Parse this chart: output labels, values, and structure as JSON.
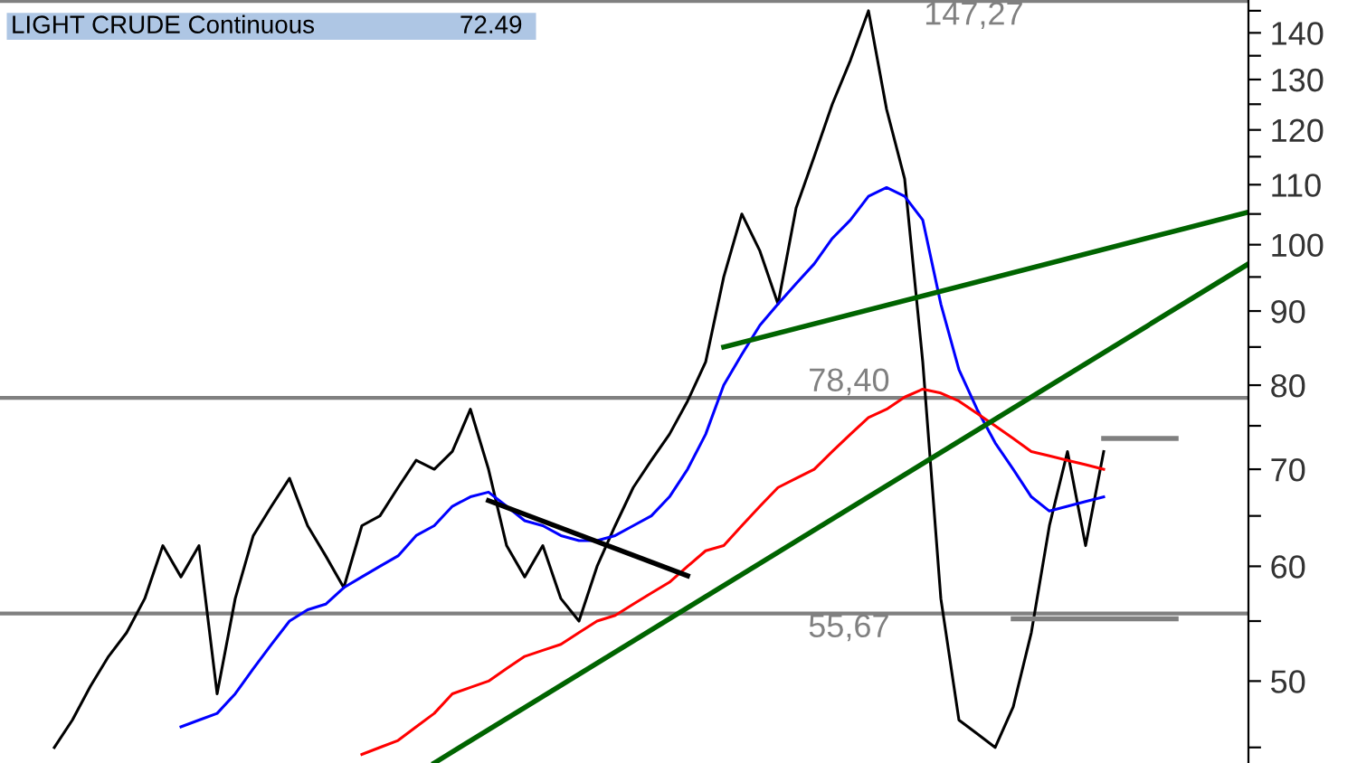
{
  "chart_data": {
    "type": "line",
    "title": "LIGHT CRUDE Continuous",
    "annotations": [
      "72.49"
    ],
    "categories": [
      null,
      null,
      null,
      null,
      null,
      null,
      null,
      null,
      null,
      null,
      null,
      null,
      null,
      null,
      null,
      null,
      null,
      null,
      null,
      null,
      null,
      null,
      null,
      null,
      null,
      null,
      null,
      null,
      null,
      null,
      null,
      null,
      null,
      null,
      null,
      null,
      null,
      null,
      null,
      null,
      null,
      null,
      null,
      null,
      null,
      null,
      null,
      null,
      null,
      null,
      null,
      null,
      null,
      null,
      null,
      null,
      null,
      null,
      null,
      null,
      null,
      null,
      null,
      null,
      null,
      null,
      null,
      null,
      null,
      null
    ],
    "series": [
      {
        "color": "#000000",
        "values": [
          null,
          null,
          null,
          45,
          47,
          49.6,
          52,
          54,
          57,
          62,
          59,
          62,
          49,
          57,
          63,
          66,
          69,
          64,
          61,
          58,
          64,
          65,
          68,
          71,
          70,
          72,
          77,
          70,
          62,
          59,
          62,
          57,
          55,
          60,
          64,
          68,
          71,
          74,
          78,
          83,
          95,
          105,
          99,
          91,
          106,
          115,
          125,
          134,
          145,
          124,
          111,
          83,
          57,
          47,
          46,
          45,
          48,
          54,
          64,
          72,
          62,
          72,
          null,
          null,
          null,
          null,
          null,
          null,
          null,
          null
        ]
      },
      {
        "color": "#0000ff",
        "values": [
          null,
          null,
          null,
          null,
          null,
          null,
          null,
          null,
          null,
          null,
          46.5,
          47,
          47.5,
          49,
          51,
          53,
          55,
          56,
          56.5,
          58,
          59,
          60,
          61,
          63,
          64,
          66,
          67,
          67.5,
          66,
          64.5,
          64,
          63,
          62.5,
          62.5,
          63,
          64,
          65,
          67,
          70,
          74,
          80,
          84,
          88,
          91,
          94,
          97,
          101,
          104,
          108,
          109.5,
          108,
          104,
          91,
          82,
          77,
          73,
          70,
          67,
          65.5,
          66,
          66.5,
          67,
          null,
          null,
          null,
          null,
          null,
          null,
          null,
          null
        ]
      },
      {
        "color": "#ff0000",
        "values": [
          null,
          null,
          null,
          null,
          null,
          null,
          null,
          null,
          null,
          null,
          null,
          null,
          null,
          null,
          null,
          null,
          null,
          null,
          null,
          null,
          44.5,
          45,
          45.5,
          46.5,
          47.5,
          49,
          49.5,
          50,
          51,
          52,
          52.5,
          53,
          54,
          55,
          55.5,
          56.5,
          57.5,
          58.5,
          60,
          61.5,
          62,
          64,
          66,
          68,
          69,
          70,
          72,
          74,
          76,
          77,
          78.5,
          79.5,
          79,
          78,
          76.5,
          75,
          73.5,
          72,
          71.5,
          71,
          70.5,
          70,
          null,
          null,
          null,
          null,
          null,
          null,
          null,
          null
        ]
      },
      {
        "color": "#006400",
        "values": [
          null,
          null,
          null,
          null,
          null,
          null,
          null,
          null,
          null,
          null,
          null,
          null,
          null,
          null,
          null,
          null,
          null,
          null,
          null,
          null,
          null,
          null,
          null,
          null,
          43.9,
          null,
          null,
          null,
          null,
          null,
          null,
          null,
          null,
          null,
          null,
          null,
          null,
          null,
          null,
          null,
          null,
          null,
          null,
          null,
          null,
          null,
          null,
          null,
          null,
          null,
          null,
          null,
          null,
          null,
          null,
          null,
          null,
          null,
          null,
          null,
          null,
          null,
          null,
          null,
          null,
          null,
          null,
          null,
          null,
          97
        ]
      },
      {
        "color": "#006400",
        "values": [
          null,
          null,
          null,
          null,
          null,
          null,
          null,
          null,
          null,
          null,
          null,
          null,
          null,
          null,
          null,
          null,
          null,
          null,
          null,
          null,
          null,
          null,
          null,
          null,
          null,
          null,
          null,
          null,
          null,
          null,
          null,
          null,
          null,
          null,
          null,
          null,
          null,
          null,
          null,
          null,
          85,
          null,
          null,
          null,
          null,
          null,
          null,
          null,
          null,
          null,
          null,
          null,
          null,
          null,
          null,
          null,
          null,
          null,
          null,
          null,
          null,
          null,
          null,
          null,
          null,
          null,
          null,
          null,
          null,
          105.3
        ]
      },
      {
        "color": "#000000",
        "values": [
          null,
          null,
          null,
          null,
          null,
          null,
          null,
          null,
          null,
          null,
          null,
          null,
          null,
          null,
          null,
          null,
          null,
          null,
          null,
          null,
          null,
          null,
          null,
          null,
          null,
          null,
          null,
          66.6,
          null,
          null,
          null,
          null,
          null,
          null,
          null,
          null,
          null,
          null,
          59.1,
          null,
          null,
          null,
          null,
          null,
          null,
          null,
          null,
          null,
          null,
          null,
          null,
          null,
          null,
          null,
          null,
          null,
          null,
          null,
          null,
          null,
          null,
          null,
          null,
          null,
          null,
          null,
          null,
          null,
          null,
          null
        ]
      },
      {
        "color": "#808080",
        "values": [
          null,
          null,
          null,
          null,
          null,
          null,
          null,
          null,
          null,
          null,
          null,
          null,
          null,
          null,
          null,
          null,
          null,
          null,
          null,
          null,
          null,
          null,
          null,
          null,
          null,
          null,
          null,
          null,
          null,
          null,
          null,
          null,
          null,
          null,
          null,
          null,
          null,
          null,
          null,
          null,
          null,
          null,
          null,
          null,
          null,
          null,
          null,
          null,
          null,
          null,
          null,
          null,
          null,
          null,
          null,
          null,
          null,
          null,
          null,
          null,
          null,
          73.5,
          null,
          null,
          null,
          73.5,
          null,
          null,
          null,
          null
        ]
      },
      {
        "color": "#808080",
        "values": [
          null,
          null,
          null,
          null,
          null,
          null,
          null,
          null,
          null,
          null,
          null,
          null,
          null,
          null,
          null,
          null,
          null,
          null,
          null,
          null,
          null,
          null,
          null,
          null,
          null,
          null,
          null,
          null,
          null,
          null,
          null,
          null,
          null,
          null,
          null,
          null,
          null,
          null,
          null,
          null,
          null,
          null,
          null,
          null,
          null,
          null,
          null,
          null,
          null,
          null,
          null,
          null,
          null,
          null,
          null,
          null,
          55.2,
          null,
          null,
          null,
          null,
          null,
          null,
          null,
          null,
          55.2,
          null,
          null,
          null,
          null
        ]
      }
    ],
    "log": "y",
    "ylim": [
      43.9,
      147.5
    ],
    "yticks": [
      {
        "value": 45,
        "label": null
      },
      50,
      {
        "value": 55,
        "label": null
      },
      60,
      {
        "value": 65,
        "label": null
      },
      70,
      {
        "value": 75,
        "label": null
      },
      80,
      {
        "value": 85,
        "label": null
      },
      90,
      {
        "value": 95,
        "label": null
      },
      100,
      {
        "value": 105,
        "label": null
      },
      110,
      {
        "value": 115,
        "label": null
      },
      120,
      {
        "value": 125,
        "label": null
      },
      130,
      {
        "value": 135,
        "label": null
      },
      140,
      {
        "value": 145,
        "label": null
      }
    ],
    "tick_labels": "y",
    "ref_lines": [
      {
        "axis": "y",
        "value": 147.27,
        "label": "147,27",
        "color": "#808080"
      },
      {
        "axis": "y",
        "value": 78.4,
        "label": "78,40",
        "color": "#808080"
      },
      {
        "axis": "y",
        "value": 55.67,
        "label": "55,67",
        "color": "#808080"
      }
    ]
  }
}
